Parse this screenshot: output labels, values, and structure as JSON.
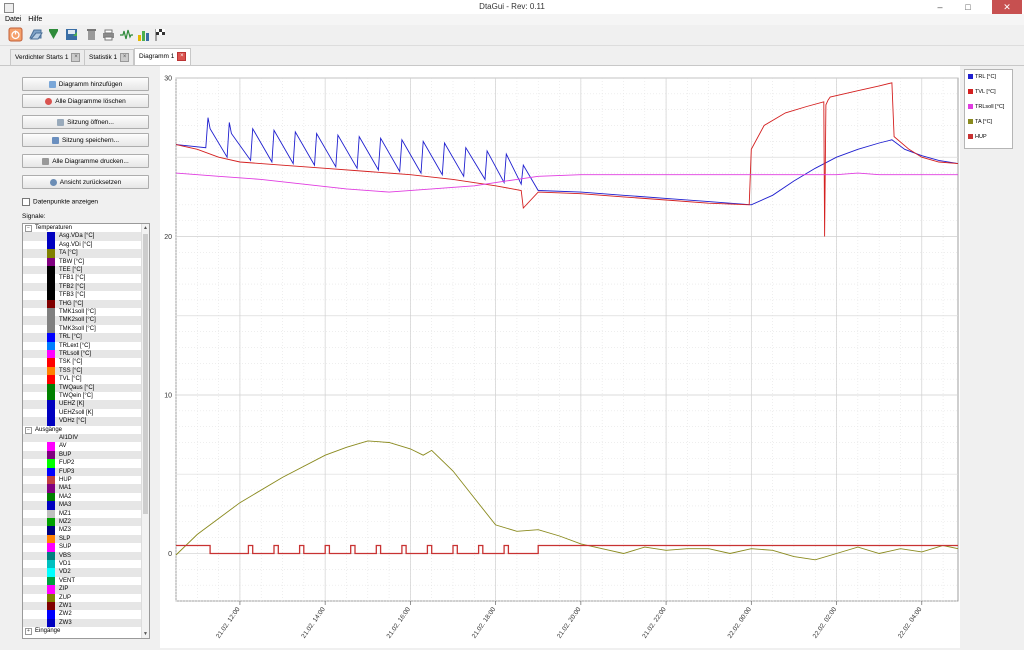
{
  "window": {
    "title": "DtaGui - Rev: 0.11",
    "minimize": "–",
    "maximize": "□",
    "close": "✕"
  },
  "menu": [
    "Datei",
    "Hilfe"
  ],
  "toolbar_icons": [
    "power-icon",
    "open-icon",
    "download-icon",
    "save-icon",
    "delete-icon",
    "print-icon",
    "signal-icon",
    "bar-chart-icon",
    "flag-icon"
  ],
  "tabs": [
    {
      "label": "Verdichter Starts 1",
      "active": false
    },
    {
      "label": "Statistik 1",
      "active": false
    },
    {
      "label": "Diagramm 1",
      "active": true
    }
  ],
  "side": {
    "buttons": [
      {
        "label": "Diagramm hinzufügen",
        "icon": "plus-icon",
        "color": "#7aa7d8"
      },
      {
        "label": "Alle Diagramme löschen",
        "icon": "delete-icon",
        "color": "#d9534f"
      },
      {
        "label": "Sitzung öffnen...",
        "icon": "folder-icon",
        "color": "#9ab"
      },
      {
        "label": "Sitzung speichern...",
        "icon": "save-icon",
        "color": "#6a8fbf"
      },
      {
        "label": "Alle Diagramme drucken...",
        "icon": "print-icon",
        "color": "#999"
      },
      {
        "label": "Ansicht zurücksetzen",
        "icon": "magnifier-icon",
        "color": "#6b8db5"
      }
    ],
    "checkbox_label": "Datenpunkte anzeigen",
    "signals_label": "Signale:"
  },
  "tree": [
    {
      "group": "Temperaturen",
      "expanded": true
    },
    {
      "label": "Asg.VDa [°C]",
      "color": "#0000c0"
    },
    {
      "label": "Asg.VDi [°C]",
      "color": "#0000c0"
    },
    {
      "label": "TA [°C]",
      "color": "#808000"
    },
    {
      "label": "TBW [°C]",
      "color": "#800080"
    },
    {
      "label": "TEE [°C]",
      "color": "#000000"
    },
    {
      "label": "TFB1 [°C]",
      "color": "#000000"
    },
    {
      "label": "TFB2 [°C]",
      "color": "#000000"
    },
    {
      "label": "TFB3 [°C]",
      "color": "#000000"
    },
    {
      "label": "THG [°C]",
      "color": "#800000"
    },
    {
      "label": "TMK1soll [°C]",
      "color": "#808080"
    },
    {
      "label": "TMK2soll [°C]",
      "color": "#808080"
    },
    {
      "label": "TMK3soll [°C]",
      "color": "#808080"
    },
    {
      "label": "TRL [°C]",
      "color": "#0000ff"
    },
    {
      "label": "TRLext [°C]",
      "color": "#0080ff"
    },
    {
      "label": "TRLsoll [°C]",
      "color": "#ff00ff"
    },
    {
      "label": "TSK [°C]",
      "color": "#ff0000"
    },
    {
      "label": "TSS [°C]",
      "color": "#ff8000"
    },
    {
      "label": "TVL [°C]",
      "color": "#ff0000"
    },
    {
      "label": "TWQaus [°C]",
      "color": "#008000"
    },
    {
      "label": "TWQein [°C]",
      "color": "#008000"
    },
    {
      "label": "UEHZ [K]",
      "color": "#0000c0"
    },
    {
      "label": "UEHZsoll [K]",
      "color": "#0000c0"
    },
    {
      "label": "VDHz [°C]",
      "color": "#0000c0"
    },
    {
      "group": "Ausgänge",
      "expanded": true
    },
    {
      "label": "AI1DIV",
      "color": ""
    },
    {
      "label": "AV",
      "color": "#ff00ff"
    },
    {
      "label": "BUP",
      "color": "#800080"
    },
    {
      "label": "FUP2",
      "color": "#00ff00"
    },
    {
      "label": "FUP3",
      "color": "#0000ff"
    },
    {
      "label": "HUP",
      "color": "#c04040"
    },
    {
      "label": "MA1",
      "color": "#800080"
    },
    {
      "label": "MA2",
      "color": "#008000"
    },
    {
      "label": "MA3",
      "color": "#0000c0"
    },
    {
      "label": "MZ1",
      "color": "#c0c0c0"
    },
    {
      "label": "MZ2",
      "color": "#00a000"
    },
    {
      "label": "MZ3",
      "color": "#000080"
    },
    {
      "label": "SLP",
      "color": "#ff8000"
    },
    {
      "label": "SUP",
      "color": "#ff00ff"
    },
    {
      "label": "VBS",
      "color": "#008080"
    },
    {
      "label": "VD1",
      "color": "#00c0c0"
    },
    {
      "label": "VD2",
      "color": "#00ffff"
    },
    {
      "label": "VENT",
      "color": "#00a040"
    },
    {
      "label": "ZIP",
      "color": "#ff00ff"
    },
    {
      "label": "ZUP",
      "color": "#808000"
    },
    {
      "label": "ZW1",
      "color": "#800000"
    },
    {
      "label": "ZW2",
      "color": "#0000ff"
    },
    {
      "label": "ZW3",
      "color": "#0000c0"
    },
    {
      "group": "Eingänge",
      "expanded": false
    }
  ],
  "chart_data": {
    "type": "line",
    "title": "",
    "xlabel": "",
    "ylabel": "",
    "ylim": [
      -3,
      30
    ],
    "yticks": [
      0,
      10,
      20,
      30
    ],
    "xlim": [
      10.5,
      28.85
    ],
    "xticks": [
      12,
      14,
      16,
      18,
      20,
      22,
      24,
      26,
      28
    ],
    "xtick_labels": [
      "21.02. 12:00",
      "21.02. 14:00",
      "21.02. 16:00",
      "21.02. 18:00",
      "21.02. 20:00",
      "21.02. 22:00",
      "22.02. 00:00",
      "22.02. 02:00",
      "22.02. 04:00"
    ],
    "x_unit": "hours since 21.02. 00:00",
    "grid": true,
    "legend_position": "right",
    "series": [
      {
        "name": "TRL [°C]",
        "color": "#1f1fcf",
        "x": [
          10.5,
          11.2,
          11.25,
          11.3,
          11.7,
          11.75,
          11.8,
          12.25,
          12.3,
          12.75,
          12.8,
          13.25,
          13.3,
          13.75,
          13.8,
          14.25,
          14.3,
          14.75,
          14.8,
          15.25,
          15.3,
          15.75,
          15.8,
          16.25,
          16.3,
          16.75,
          16.8,
          17.25,
          17.3,
          17.75,
          17.8,
          18.2,
          18.25,
          18.6,
          18.65,
          19.0,
          20.0,
          21.0,
          22.0,
          23.0,
          24.0,
          24.5,
          25.0,
          25.5,
          26.0,
          26.5,
          27.0,
          27.3,
          27.6,
          28.0,
          28.4,
          28.85
        ],
        "y": [
          25.8,
          25.6,
          27.5,
          26.8,
          25.0,
          27.2,
          26.5,
          24.8,
          26.8,
          24.7,
          26.7,
          24.6,
          26.6,
          24.5,
          26.5,
          24.4,
          26.4,
          24.3,
          26.3,
          24.2,
          26.2,
          24.1,
          26.1,
          24.0,
          26.0,
          23.9,
          25.9,
          23.8,
          25.6,
          23.6,
          25.4,
          23.4,
          25.2,
          23.3,
          24.5,
          22.9,
          22.8,
          22.6,
          22.4,
          22.2,
          22.0,
          22.6,
          23.5,
          24.3,
          25.0,
          25.5,
          25.9,
          26.1,
          25.5,
          25.1,
          24.8,
          24.6
        ]
      },
      {
        "name": "TVL [°C]",
        "color": "#d42020",
        "x": [
          10.5,
          11.0,
          11.5,
          12.0,
          13.0,
          14.0,
          15.0,
          16.0,
          17.0,
          18.0,
          18.6,
          18.65,
          19.0,
          20.0,
          21.0,
          22.0,
          23.0,
          23.95,
          24.0,
          24.3,
          24.8,
          25.3,
          25.7,
          25.72,
          25.75,
          25.8,
          25.85,
          26.5,
          27.0,
          27.3,
          27.35,
          27.7,
          28.0,
          28.4,
          28.85
        ],
        "y": [
          25.8,
          25.5,
          25.0,
          24.7,
          24.5,
          24.3,
          24.1,
          23.9,
          23.6,
          23.2,
          22.9,
          21.8,
          22.8,
          22.7,
          22.5,
          22.3,
          22.1,
          22.0,
          25.5,
          27.0,
          27.8,
          28.2,
          28.5,
          20.0,
          28.3,
          28.6,
          28.8,
          29.2,
          29.5,
          29.7,
          26.3,
          25.5,
          25.0,
          24.7,
          24.6
        ]
      },
      {
        "name": "TRLsoll [°C]",
        "color": "#e03ce0",
        "x": [
          10.5,
          11.5,
          12.5,
          13.5,
          14.5,
          15.5,
          16.5,
          17.5,
          18.0,
          18.5,
          19.0,
          20.0,
          21.0,
          22.0,
          23.0,
          24.0,
          25.0,
          26.0,
          26.5,
          27.0,
          28.0,
          28.85
        ],
        "y": [
          24.0,
          23.8,
          23.6,
          23.3,
          23.0,
          22.8,
          23.0,
          23.2,
          23.4,
          23.6,
          23.8,
          23.9,
          23.9,
          23.9,
          23.9,
          23.9,
          23.9,
          23.9,
          24.0,
          23.9,
          23.9,
          23.9
        ]
      },
      {
        "name": "TA [°C]",
        "color": "#8a8a1e",
        "x": [
          10.5,
          11.0,
          12.0,
          13.0,
          14.0,
          14.5,
          15.0,
          15.5,
          16.0,
          16.3,
          16.5,
          17.0,
          17.5,
          18.0,
          18.5,
          19.0,
          19.5,
          20.0,
          20.5,
          21.0,
          21.5,
          22.0,
          22.5,
          23.0,
          23.5,
          24.0,
          24.5,
          25.0,
          25.5,
          26.0,
          26.5,
          27.0,
          27.5,
          28.0,
          28.5,
          28.85
        ],
        "y": [
          -0.1,
          1.2,
          3.2,
          4.8,
          6.2,
          6.7,
          7.1,
          7.0,
          6.6,
          6.2,
          6.5,
          5.2,
          3.5,
          1.8,
          1.4,
          1.5,
          1.1,
          0.6,
          0.3,
          0.0,
          0.4,
          0.2,
          0.3,
          0.3,
          0.0,
          0.3,
          0.2,
          -0.2,
          -0.4,
          0.0,
          0.4,
          0.0,
          0.3,
          0.1,
          0.5,
          0.3
        ]
      },
      {
        "name": "HUP",
        "color": "#c83232",
        "step_x": [
          10.5,
          11.3,
          11.3,
          12.2,
          12.2,
          12.3,
          12.3,
          12.8,
          12.8,
          12.9,
          12.9,
          13.4,
          13.4,
          13.5,
          13.5,
          14.0,
          14.0,
          14.1,
          14.1,
          14.6,
          14.6,
          14.7,
          14.7,
          15.2,
          15.2,
          15.3,
          15.3,
          15.8,
          15.8,
          15.9,
          15.9,
          16.4,
          16.4,
          16.5,
          16.5,
          17.0,
          17.0,
          17.1,
          17.1,
          17.6,
          17.6,
          17.7,
          17.7,
          18.2,
          18.2,
          18.3,
          18.3,
          19.0,
          19.0,
          28.85
        ],
        "step_y": [
          0.5,
          0.5,
          0,
          0,
          0.5,
          0.5,
          0,
          0,
          0.5,
          0.5,
          0,
          0,
          0.5,
          0.5,
          0,
          0,
          0.5,
          0.5,
          0,
          0,
          0.5,
          0.5,
          0,
          0,
          0.5,
          0.5,
          0,
          0,
          0.5,
          0.5,
          0,
          0,
          0.5,
          0.5,
          0,
          0,
          0.5,
          0.5,
          0,
          0,
          0.5,
          0.5,
          0,
          0,
          0.5,
          0.5,
          0,
          0,
          0.5,
          0.5
        ]
      }
    ]
  }
}
